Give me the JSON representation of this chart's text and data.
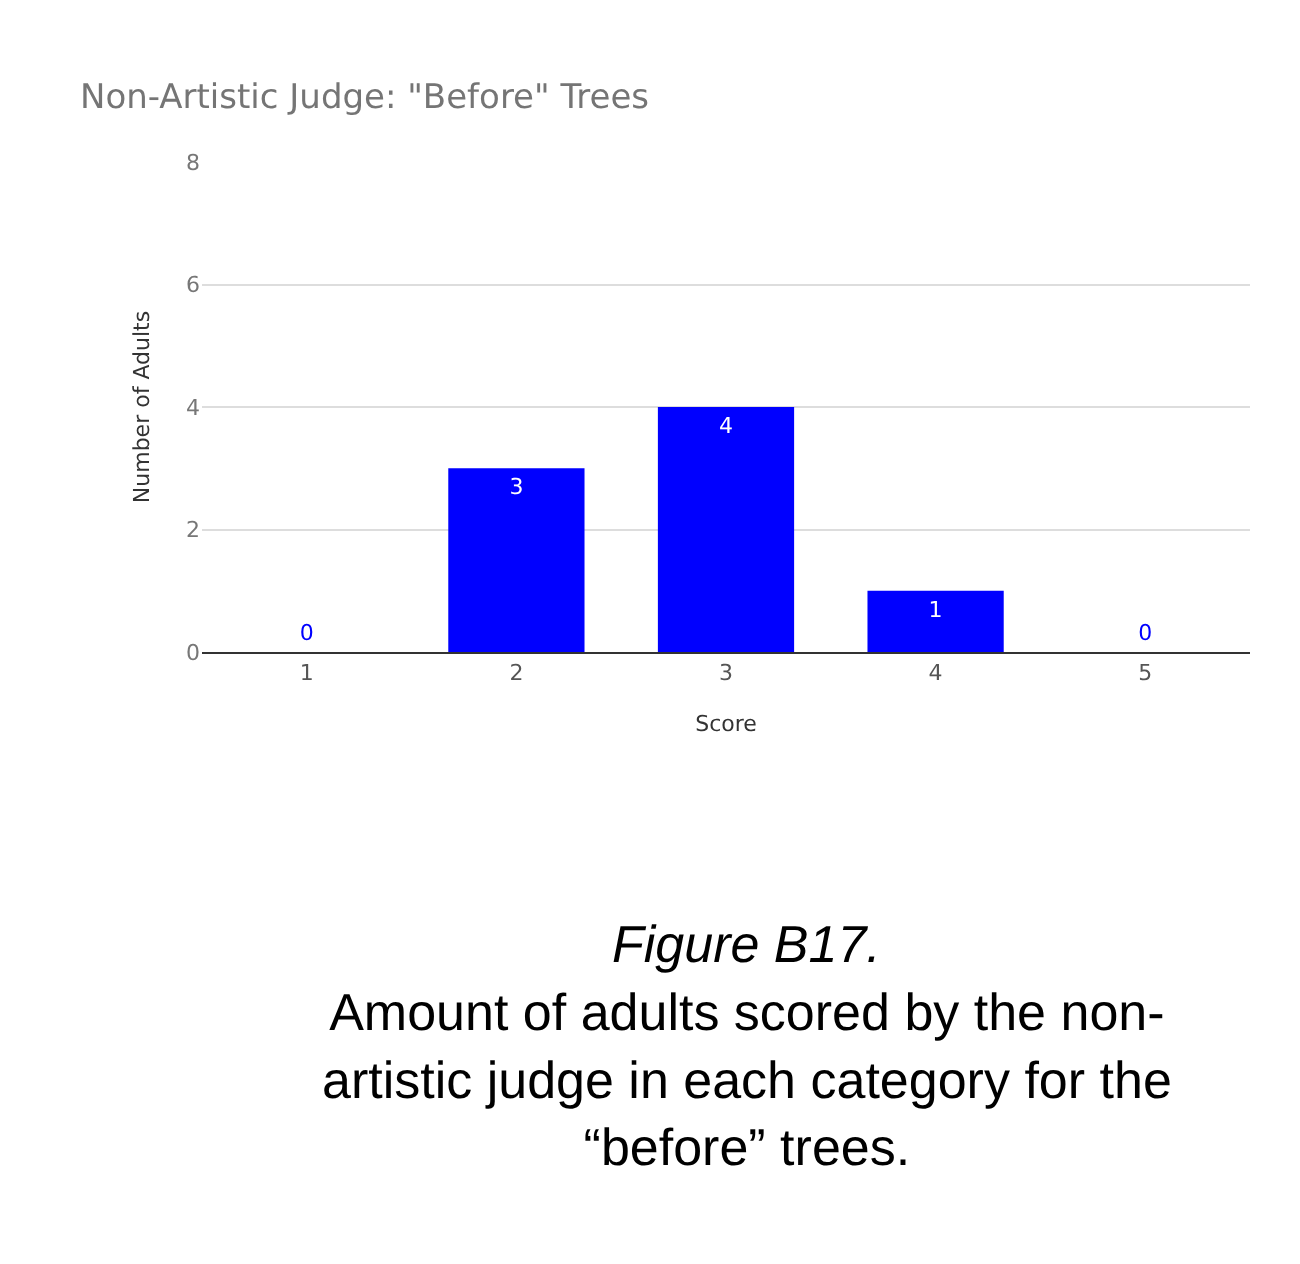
{
  "chart_data": {
    "type": "bar",
    "title": "Non-Artistic Judge: \"Before\" Trees",
    "xlabel": "Score",
    "ylabel": "Number of Adults",
    "categories": [
      "1",
      "2",
      "3",
      "4",
      "5"
    ],
    "values": [
      0,
      3,
      4,
      1,
      0
    ],
    "color": "#0000ff",
    "ylim": [
      0,
      8
    ],
    "yticks": [
      0,
      2,
      4,
      6,
      8
    ],
    "grid": "y",
    "data_labels": true,
    "legend": false,
    "annotations": [
      "Figure B17.",
      "Amount of adults scored by the non-artistic judge in each category for the “before” trees."
    ]
  }
}
